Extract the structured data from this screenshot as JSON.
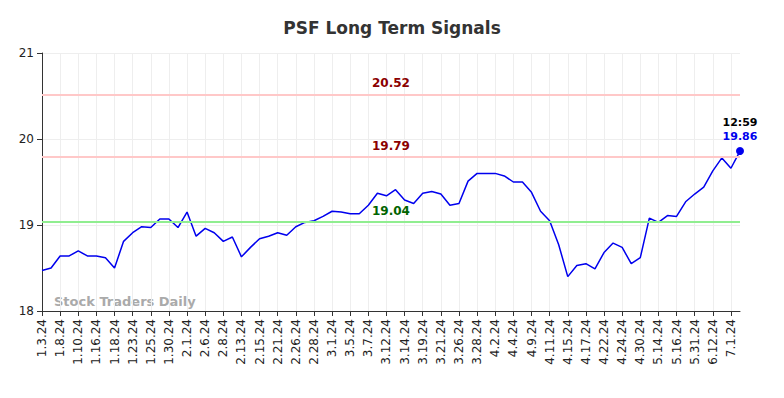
{
  "chart_data": {
    "type": "line",
    "title": "PSF Long Term Signals",
    "watermark": "Stock Traders Daily",
    "color": "#0000ee",
    "grid": true,
    "categories": [
      "1.3.24",
      null,
      "1.8.24",
      null,
      "1.10.24",
      null,
      "1.16.24",
      null,
      "1.18.24",
      null,
      "1.23.24",
      null,
      "1.25.24",
      null,
      "1.30.24",
      null,
      "2.1.24",
      null,
      "2.6.24",
      null,
      "2.8.24",
      null,
      "2.13.24",
      null,
      "2.15.24",
      null,
      "2.21.24",
      null,
      "2.26.24",
      null,
      "2.28.24",
      null,
      "3.1.24",
      null,
      "3.5.24",
      null,
      "3.7.24",
      null,
      "3.12.24",
      null,
      "3.14.24",
      null,
      "3.19.24",
      null,
      "3.21.24",
      null,
      "3.26.24",
      null,
      "3.28.24",
      null,
      "4.2.24",
      null,
      "4.4.24",
      null,
      "4.9.24",
      null,
      "4.11.24",
      null,
      "4.15.24",
      null,
      "4.17.24",
      null,
      "4.22.24",
      null,
      "4.24.24",
      null,
      "4.30.24",
      null,
      "5.14.24",
      null,
      "5.16.24",
      null,
      "5.31.24",
      null,
      "6.12.24",
      null,
      "7.1.24",
      null
    ],
    "values": [
      18.47,
      18.5,
      18.64,
      18.64,
      18.7,
      18.64,
      18.64,
      18.62,
      18.5,
      18.81,
      18.91,
      18.98,
      18.97,
      19.07,
      19.07,
      18.97,
      19.15,
      18.87,
      18.96,
      18.91,
      18.81,
      18.86,
      18.63,
      18.74,
      18.84,
      18.87,
      18.91,
      18.88,
      18.98,
      19.03,
      19.05,
      19.1,
      19.16,
      19.15,
      19.13,
      19.13,
      19.23,
      19.37,
      19.34,
      19.41,
      19.29,
      19.25,
      19.37,
      19.39,
      19.36,
      19.23,
      19.25,
      19.51,
      19.6,
      19.6,
      19.6,
      19.57,
      19.5,
      19.5,
      19.38,
      19.16,
      19.05,
      18.77,
      18.4,
      18.53,
      18.55,
      18.49,
      18.68,
      18.79,
      18.74,
      18.55,
      18.62,
      19.08,
      19.03,
      19.11,
      19.1,
      19.27,
      19.36,
      19.44,
      19.63,
      19.78,
      19.66,
      19.86
    ],
    "ylim": [
      18,
      21
    ],
    "yticks": [
      18,
      19,
      20,
      21
    ],
    "levels": [
      {
        "value": 20.52,
        "color": "#ffc8c8",
        "label_color": "#8b0000"
      },
      {
        "value": 19.79,
        "color": "#ffc8c8",
        "label_color": "#8b0000"
      },
      {
        "value": 19.04,
        "color": "#90ee90",
        "label_color": "#006400"
      }
    ],
    "annotations": [
      {
        "text": "12:59",
        "category_index": 77,
        "value_color": "#0000ee"
      }
    ]
  }
}
